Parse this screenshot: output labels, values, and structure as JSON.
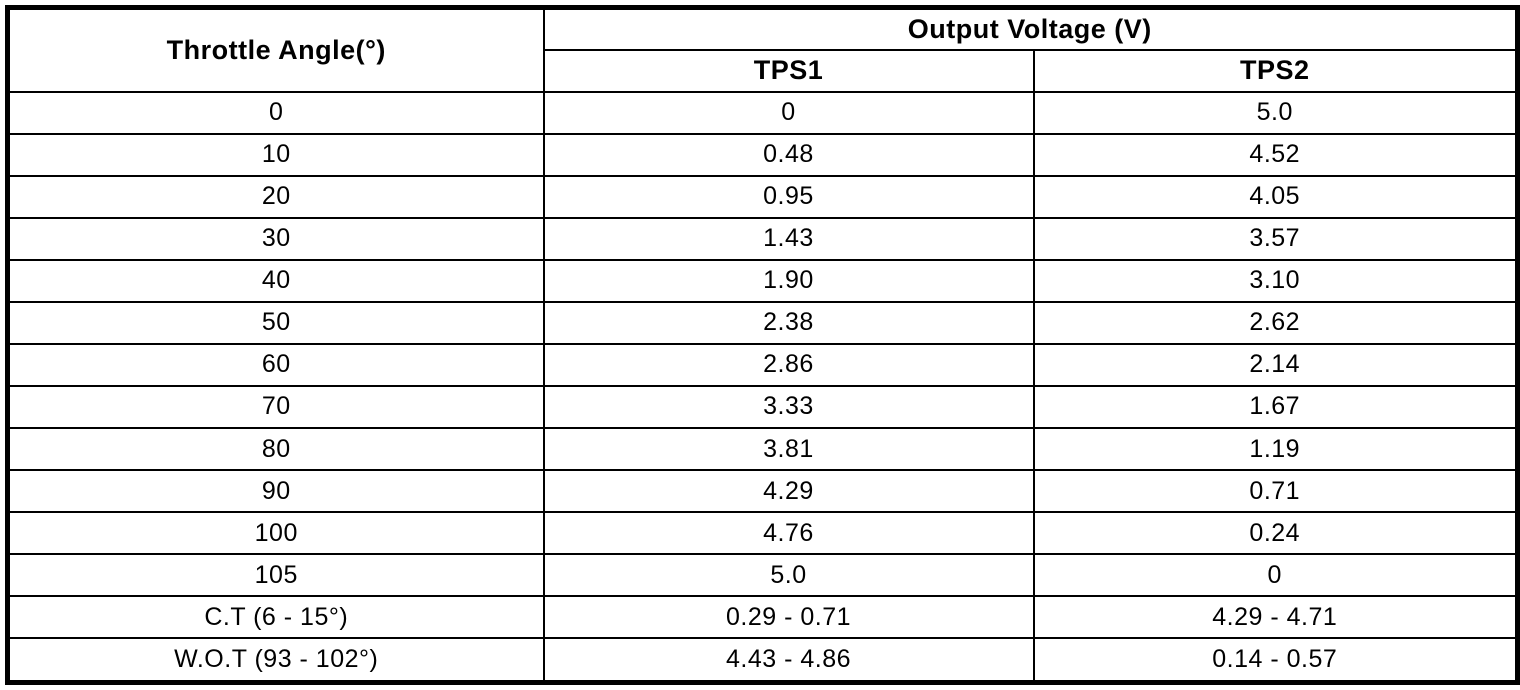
{
  "table": {
    "col1_header": "Throttle Angle(°)",
    "group_header": "Output Voltage (V)",
    "sub_headers": [
      "TPS1",
      "TPS2"
    ],
    "rows": [
      [
        "0",
        "0",
        "5.0"
      ],
      [
        "10",
        "0.48",
        "4.52"
      ],
      [
        "20",
        "0.95",
        "4.05"
      ],
      [
        "30",
        "1.43",
        "3.57"
      ],
      [
        "40",
        "1.90",
        "3.10"
      ],
      [
        "50",
        "2.38",
        "2.62"
      ],
      [
        "60",
        "2.86",
        "2.14"
      ],
      [
        "70",
        "3.33",
        "1.67"
      ],
      [
        "80",
        "3.81",
        "1.19"
      ],
      [
        "90",
        "4.29",
        "0.71"
      ],
      [
        "100",
        "4.76",
        "0.24"
      ],
      [
        "105",
        "5.0",
        "0"
      ],
      [
        "C.T (6 - 15°)",
        "0.29 - 0.71",
        "4.29 - 4.71"
      ],
      [
        "W.O.T (93 - 102°)",
        "4.43 - 4.86",
        "0.14 - 0.57"
      ]
    ]
  },
  "colors": {
    "border": "#000000",
    "background": "#ffffff",
    "text": "#000000"
  }
}
